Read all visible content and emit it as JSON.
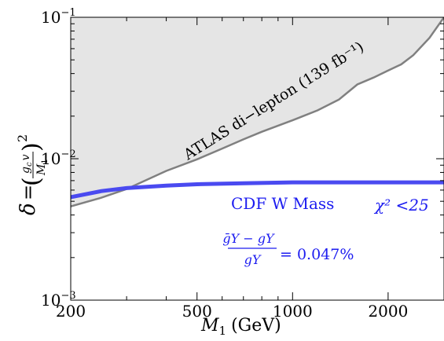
{
  "chart_data": {
    "type": "line",
    "xscale": "log",
    "yscale": "log",
    "xlim": [
      200,
      3000
    ],
    "ylim": [
      0.001,
      0.1
    ],
    "grid": false,
    "xlabel": {
      "main": "M",
      "sub": "1",
      "unit": "(GeV)"
    },
    "ylabel": "δ = (g_c v / M_1)^2",
    "x_ticks": [
      {
        "value": 200,
        "label": "200"
      },
      {
        "value": 500,
        "label": "500"
      },
      {
        "value": 1000,
        "label": "1000"
      },
      {
        "value": 2000,
        "label": "2000"
      }
    ],
    "y_ticks": [
      {
        "value": 0.001,
        "base": "10",
        "exp": "−3"
      },
      {
        "value": 0.01,
        "base": "10",
        "exp": "−2"
      },
      {
        "value": 0.1,
        "base": "10",
        "exp": "−1"
      }
    ],
    "series": [
      {
        "name": "ATLAS di−lepton (139 fb⁻¹)",
        "type": "area",
        "color": "#808080",
        "fill": "#e5e5e5",
        "x": [
          200,
          250,
          300,
          400,
          500,
          600,
          700,
          800,
          1000,
          1200,
          1400,
          1600,
          1800,
          2000,
          2200,
          2400,
          2700,
          3000
        ],
        "y": [
          0.0046,
          0.0053,
          0.0061,
          0.0082,
          0.0099,
          0.0118,
          0.0137,
          0.0155,
          0.0187,
          0.022,
          0.0262,
          0.0335,
          0.0375,
          0.042,
          0.0465,
          0.054,
          0.0715,
          0.1
        ]
      },
      {
        "name": "CDF W Mass",
        "type": "line",
        "color": "#4a4af0",
        "x": [
          200,
          250,
          300,
          400,
          500,
          700,
          1000,
          1500,
          2000,
          3000
        ],
        "y": [
          0.00535,
          0.0059,
          0.0062,
          0.00645,
          0.0066,
          0.0067,
          0.0068,
          0.0068,
          0.0068,
          0.0068
        ]
      }
    ],
    "annotations": {
      "atlas_label": "ATLAS di−lepton (139 fb⁻¹)",
      "cdf_label": "CDF W Mass",
      "chi2_label": "χ² <25",
      "ratio_numerator": "ḡY − gY",
      "ratio_denominator": "gY",
      "ratio_value": "= 0.047%"
    }
  }
}
